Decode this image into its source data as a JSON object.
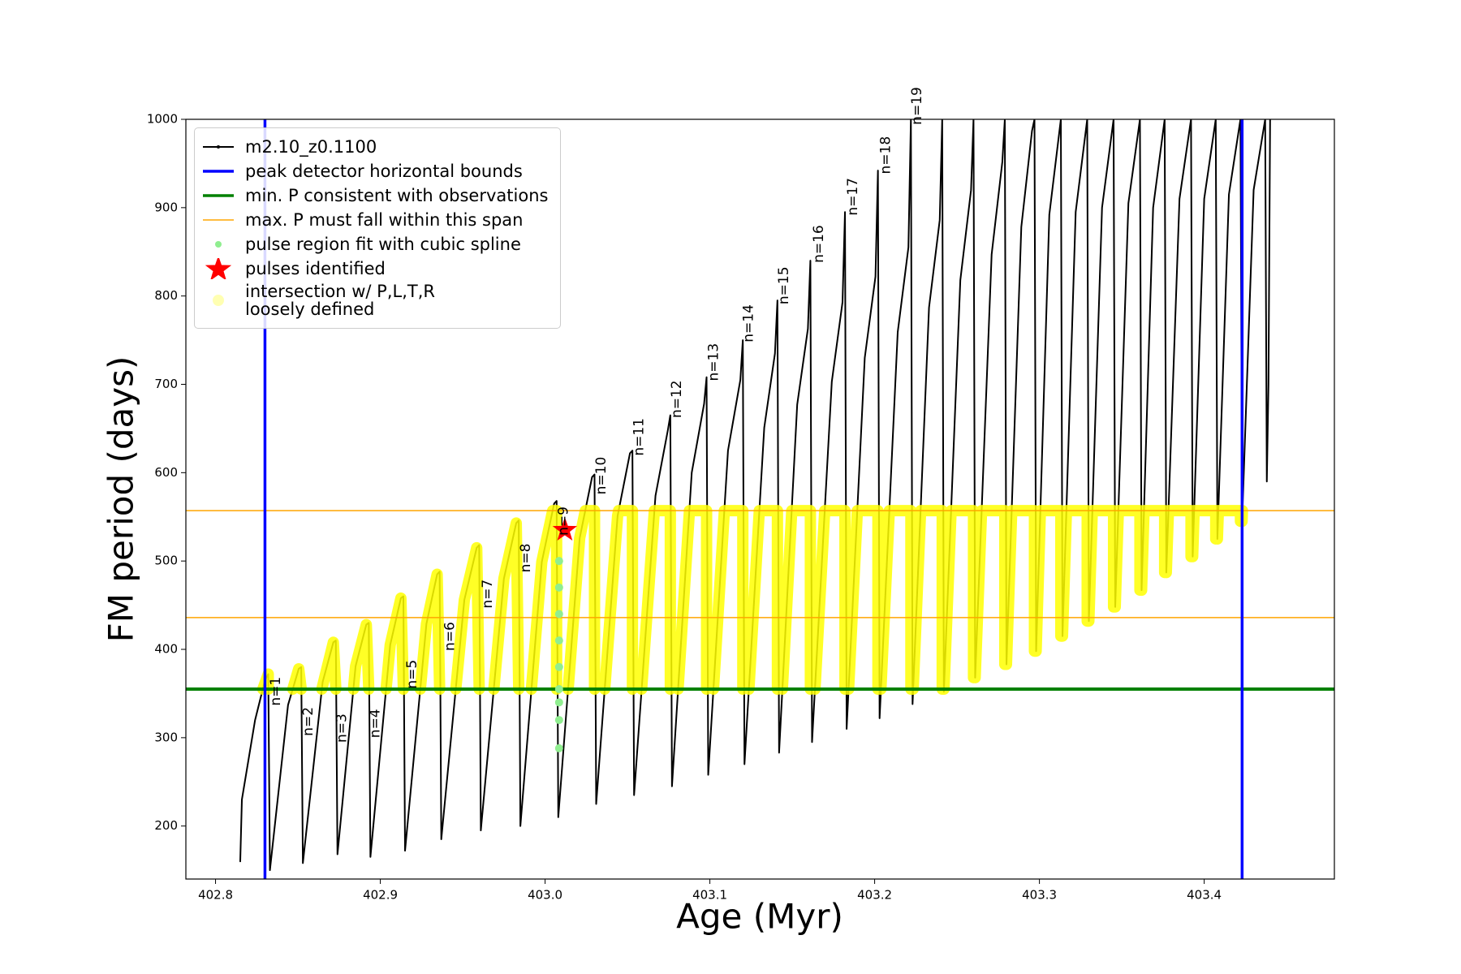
{
  "chart_data": {
    "type": "line",
    "xlabel": "Age (Myr)",
    "ylabel": "FM period (days)",
    "xlim": [
      402.782,
      403.479
    ],
    "ylim": [
      140,
      1000
    ],
    "xticks": [
      402.8,
      402.9,
      {
        "value": 403,
        "label": "403.0"
      },
      403.1,
      403.2,
      403.3,
      403.4
    ],
    "yticks": [
      200,
      300,
      400,
      500,
      600,
      700,
      800,
      900,
      1000
    ],
    "annotations": [
      "n=1",
      "n=2",
      "n=3",
      "n=4",
      "n=5",
      "n=6",
      "n=7",
      "n=8",
      "n=9",
      "n=10",
      "n=11",
      "n=12",
      "n=13",
      "n=14",
      "n=15",
      "n=16",
      "n=17",
      "n=18",
      "n=19"
    ],
    "series": [
      {
        "name": "m2.10_z0.1100",
        "kind": "line",
        "color": "#000000",
        "linewidth": 2,
        "marker": ".",
        "x": [
          402.815,
          402.816,
          402.824,
          402.83,
          402.832,
          402.833,
          402.844,
          402.8505,
          402.852,
          402.853,
          402.865,
          402.8715,
          402.873,
          402.874,
          402.885,
          402.8915,
          402.893,
          402.894,
          402.906,
          402.9125,
          402.914,
          402.915,
          402.928,
          402.9345,
          402.936,
          402.937,
          402.951,
          402.9585,
          402.96,
          402.961,
          402.975,
          402.9825,
          402.984,
          402.985,
          402.998,
          403.0055,
          403.007,
          403.008,
          403.021,
          403.0285,
          403.03,
          403.031,
          403.044,
          403.0515,
          403.053,
          403.054,
          403.067,
          403.0745,
          403.076,
          403.077,
          403.089,
          403.0965,
          403.098,
          403.099,
          403.111,
          403.1185,
          403.12,
          403.121,
          403.133,
          403.1395,
          403.141,
          403.142,
          403.153,
          403.1595,
          403.161,
          403.162,
          403.174,
          403.1805,
          403.182,
          403.183,
          403.194,
          403.2005,
          403.202,
          403.203,
          403.214,
          403.2205,
          403.222,
          403.223,
          403.233,
          403.2395,
          403.241,
          403.242,
          403.252,
          403.2585,
          403.26,
          403.261,
          403.271,
          403.2775,
          403.279,
          403.28,
          403.289,
          403.2955,
          403.297,
          403.298,
          403.306,
          403.313,
          403.314,
          403.322,
          403.329,
          403.33,
          403.338,
          403.345,
          403.346,
          403.354,
          403.361,
          403.362,
          403.369,
          403.376,
          403.377,
          403.385,
          403.392,
          403.393,
          403.4,
          403.407,
          403.408,
          403.415,
          403.422,
          403.423,
          403.43,
          403.437,
          403.438,
          403.439,
          403.44
        ],
        "y": [
          160,
          230,
          320,
          365,
          372,
          150,
          337,
          378,
          380,
          158,
          363,
          408,
          410,
          168,
          381,
          428,
          430,
          165,
          405,
          458,
          460,
          172,
          429,
          485,
          488,
          185,
          456,
          515,
          518,
          195,
          480,
          543,
          546,
          200,
          499,
          565,
          568,
          210,
          526,
          595,
          598,
          225,
          551,
          622,
          625,
          235,
          574,
          648,
          665,
          245,
          600,
          678,
          708,
          258,
          625,
          705,
          750,
          270,
          651,
          735,
          795,
          283,
          677,
          763,
          840,
          295,
          703,
          793,
          895,
          310,
          730,
          822,
          942,
          322,
          759,
          855,
          1000,
          338,
          787,
          886,
          1000,
          352,
          818,
          920,
          1000,
          368,
          847,
          952,
          1000,
          383,
          878,
          987,
          1000,
          398,
          892,
          1000,
          415,
          895,
          1000,
          432,
          900,
          1000,
          448,
          905,
          1000,
          467,
          900,
          1000,
          487,
          910,
          1000,
          505,
          910,
          1000,
          525,
          915,
          1000,
          545,
          920,
          1000,
          590,
          700,
          1000
        ]
      },
      {
        "name": "peak detector horizontal bounds",
        "kind": "vline",
        "color": "#0000ff",
        "linewidth": 3.5,
        "x": [
          402.83,
          403.423
        ]
      },
      {
        "name": "min. P consistent with observations",
        "kind": "hline",
        "color": "#008000",
        "linewidth": 4,
        "y": [
          355
        ]
      },
      {
        "name": "max. P must fall within this span",
        "kind": "hline",
        "color": "#ffa500",
        "linewidth": 1.5,
        "y": [
          436,
          557
        ]
      },
      {
        "name": "pulse region fit with cubic spline",
        "kind": "scatter",
        "color": "#90ee90",
        "x": [
          403.0085,
          403.0085,
          403.0085,
          403.0085,
          403.0085,
          403.0085,
          403.0085,
          403.0085,
          403.0085
        ],
        "y": [
          288,
          320,
          340,
          355,
          380,
          410,
          440,
          470,
          500
        ]
      },
      {
        "name": "pulses identified",
        "kind": "star",
        "color": "#ff0000",
        "x": [
          403.012
        ],
        "y": [
          535
        ]
      },
      {
        "name": "intersection w/ P,L,T,R\nloosely defined",
        "kind": "line",
        "color": "#ffff00",
        "linewidth": 14,
        "x": [
          402.8287,
          402.832,
          402.832,
          null,
          402.8469,
          402.8505,
          402.852,
          null,
          402.8645,
          402.8715,
          402.873,
          null,
          402.8837,
          402.885,
          402.8915,
          402.893,
          null,
          402.9035,
          402.906,
          402.9125,
          402.914,
          null,
          402.9243,
          402.928,
          402.9345,
          402.936,
          null,
          402.9458,
          402.951,
          402.9585,
          402.96,
          null,
          402.9689,
          402.975,
          402.9825,
          402.984,
          null,
          402.9917,
          402.998,
          403.0046,
          403.007,
          403.007,
          null,
          403.014,
          403.021,
          403.0244,
          403.03,
          403.03,
          null,
          403.0362,
          403.044,
          403.0446,
          403.053,
          403.053,
          null,
          403.0586,
          403.0663,
          403.076,
          403.076,
          null,
          403.0807,
          403.0876,
          403.098,
          403.098,
          null,
          403.1022,
          403.1088,
          403.12,
          403.12,
          null,
          403.1237,
          403.13,
          403.141,
          403.141,
          null,
          403.144,
          403.1497,
          403.161,
          403.161,
          null,
          403.1638,
          403.1697,
          403.182,
          403.182,
          null,
          403.1842,
          403.1895,
          403.202,
          403.202,
          null,
          403.2038,
          403.2089,
          403.222,
          403.222,
          null,
          403.2234,
          403.2279,
          403.241,
          403.241,
          null,
          403.2421,
          403.2464,
          403.26,
          403.26,
          null,
          403.261,
          403.2649,
          403.279,
          403.279,
          null,
          403.28,
          403.2832,
          403.297,
          403.297,
          null,
          403.298,
          403.3006,
          403.313,
          403.313,
          null,
          403.314,
          403.3164,
          403.329,
          403.329,
          null,
          403.33,
          403.3321,
          403.345,
          403.345,
          null,
          403.346,
          403.3479,
          403.361,
          403.361,
          null,
          403.362,
          403.3635,
          403.376,
          403.376,
          null,
          403.377,
          403.3783,
          403.392,
          403.392,
          null,
          403.393,
          403.3939,
          403.407,
          403.407,
          null,
          403.408,
          403.4086,
          403.422,
          403.422,
          null,
          403.423,
          403.4232
        ],
        "y": [
          355,
          372,
          355,
          null,
          355,
          378,
          355,
          null,
          355,
          408,
          355,
          null,
          355,
          381,
          428,
          355,
          null,
          355,
          405,
          458,
          355,
          null,
          355,
          429,
          485,
          355,
          null,
          355,
          456,
          515,
          355,
          null,
          355,
          480,
          543,
          355,
          null,
          355,
          499,
          557,
          557,
          355,
          null,
          355,
          526,
          557,
          557,
          355,
          null,
          355,
          551,
          557,
          557,
          355,
          null,
          355,
          557,
          557,
          355,
          null,
          355,
          557,
          557,
          355,
          null,
          355,
          557,
          557,
          355,
          null,
          355,
          557,
          557,
          355,
          null,
          355,
          557,
          557,
          355,
          null,
          355,
          557,
          557,
          355,
          null,
          355,
          557,
          557,
          355,
          null,
          355,
          557,
          557,
          355,
          null,
          355,
          557,
          557,
          355,
          null,
          355,
          557,
          557,
          368,
          null,
          368,
          557,
          557,
          383,
          null,
          383,
          557,
          557,
          398,
          null,
          398,
          557,
          557,
          415,
          null,
          415,
          557,
          557,
          432,
          null,
          432,
          557,
          557,
          448,
          null,
          448,
          557,
          557,
          467,
          null,
          467,
          557,
          557,
          487,
          null,
          487,
          557,
          557,
          505,
          null,
          505,
          557,
          557,
          525,
          null,
          525,
          557,
          557,
          545,
          null,
          545,
          557
        ]
      }
    ]
  }
}
